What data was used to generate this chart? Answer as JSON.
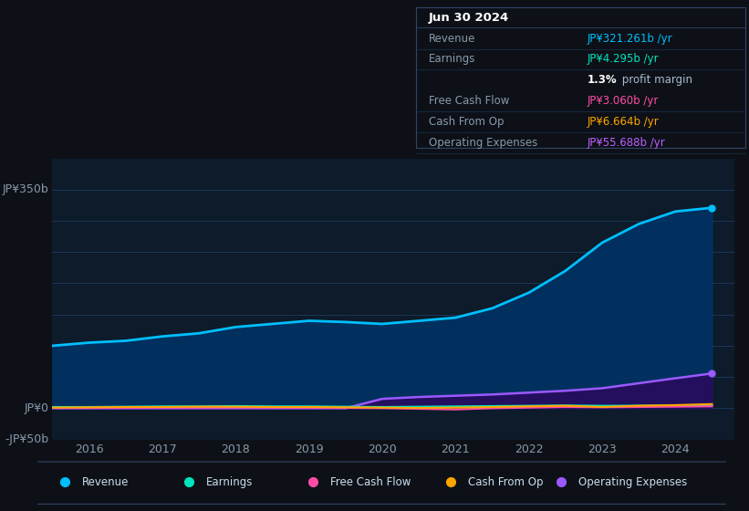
{
  "bg_color": "#0d1117",
  "plot_bg_color": "#0d1b2a",
  "grid_color": "#1e3a5f",
  "title_date": "Jun 30 2024",
  "info_table": {
    "Revenue": {
      "value": "JP¥321.261b /yr",
      "color": "#00bfff"
    },
    "Earnings": {
      "value": "JP¥4.295b /yr",
      "color": "#00e5c0"
    },
    "Free Cash Flow": {
      "value": "JP¥3.060b /yr",
      "color": "#ff4da6"
    },
    "Cash From Op": {
      "value": "JP¥6.664b /yr",
      "color": "#ffa500"
    },
    "Operating Expenses": {
      "value": "JP¥55.688b /yr",
      "color": "#bf5fff"
    }
  },
  "years": [
    2015.5,
    2016.0,
    2016.5,
    2017.0,
    2017.5,
    2018.0,
    2018.5,
    2019.0,
    2019.5,
    2020.0,
    2020.5,
    2021.0,
    2021.5,
    2022.0,
    2022.5,
    2023.0,
    2023.5,
    2024.0,
    2024.5
  ],
  "revenue": [
    100,
    105,
    108,
    115,
    120,
    130,
    135,
    140,
    138,
    135,
    140,
    145,
    160,
    185,
    220,
    265,
    295,
    315,
    321
  ],
  "earnings": [
    2,
    2,
    2.5,
    3,
    3,
    3.5,
    3,
    3,
    2.5,
    2,
    2.5,
    3,
    3.5,
    4,
    4.5,
    4,
    4.2,
    4.3,
    4.295
  ],
  "free_cash_flow": [
    0.5,
    0.5,
    0.8,
    1,
    1,
    1.2,
    1,
    0.8,
    0.5,
    0,
    -1,
    -2,
    0,
    1,
    2,
    1.5,
    2,
    2.5,
    3.06
  ],
  "cash_from_op": [
    1,
    1.5,
    2,
    2,
    2.5,
    2.5,
    2,
    2,
    1.5,
    1,
    0.5,
    1,
    2,
    3,
    4,
    2,
    4,
    5,
    6.664
  ],
  "operating_expenses": [
    0,
    0,
    0,
    0,
    0,
    0,
    0,
    0,
    0,
    15,
    18,
    20,
    22,
    25,
    28,
    32,
    40,
    48,
    55.688
  ],
  "ylim": [
    -50,
    400
  ],
  "xlim": [
    2015.5,
    2024.8
  ],
  "xticks": [
    2016,
    2017,
    2018,
    2019,
    2020,
    2021,
    2022,
    2023,
    2024
  ],
  "revenue_color": "#00bfff",
  "revenue_fill_color": "#003366",
  "opex_fill_color": "#2a0a5e",
  "earnings_color": "#00e5c0",
  "fcf_color": "#ff4da6",
  "cashop_color": "#ffa500",
  "opex_color": "#9b59ff",
  "legend_items": [
    {
      "label": "Revenue",
      "color": "#00bfff"
    },
    {
      "label": "Earnings",
      "color": "#00e5c0"
    },
    {
      "label": "Free Cash Flow",
      "color": "#ff4da6"
    },
    {
      "label": "Cash From Op",
      "color": "#ffa500"
    },
    {
      "label": "Operating Expenses",
      "color": "#9b59ff"
    }
  ]
}
